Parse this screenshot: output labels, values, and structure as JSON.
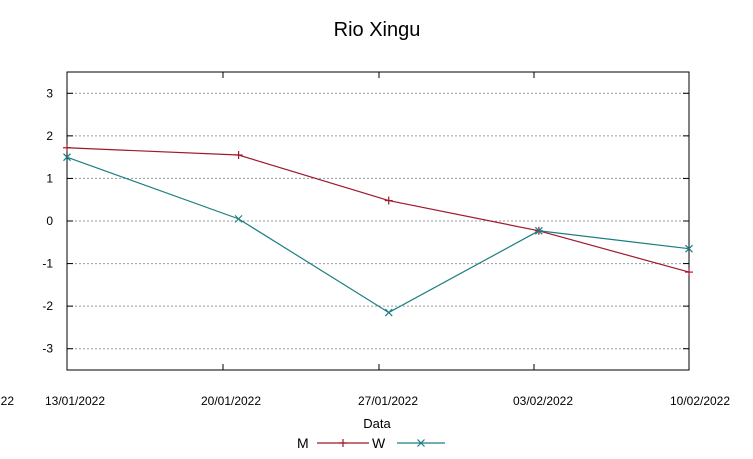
{
  "chart_data": {
    "type": "line",
    "title": "Rio Xingu",
    "xlabel": "Data",
    "ylabel": "",
    "x": [
      "13/01/2022",
      "20/01/2022",
      "27/01/2022",
      "03/02/2022",
      "10/02/2022"
    ],
    "x_tick_labels": [
      "22",
      "13/01/2022",
      "20/01/2022",
      "27/01/2022",
      "03/02/2022",
      "10/02/2022"
    ],
    "x_range": [
      "12/01/2022",
      "10/02/2022"
    ],
    "ylim": [
      -3.5,
      3.5
    ],
    "y_ticks": [
      3,
      2,
      1,
      0,
      -1,
      -2,
      -3
    ],
    "grid": "horizontal dashed",
    "legend_position": "bottom",
    "series": [
      {
        "name": "M",
        "color": "#a0182b",
        "marker": "plus",
        "points": [
          {
            "x": "12/01/2022",
            "y": 1.72
          },
          {
            "x": "20/01/2022",
            "y": 1.55
          },
          {
            "x": "27/01/2022",
            "y": 0.48
          },
          {
            "x": "03/02/2022",
            "y": -0.23
          },
          {
            "x": "10/02/2022",
            "y": -1.2
          }
        ]
      },
      {
        "name": "W",
        "color": "#1c7e80",
        "marker": "x",
        "points": [
          {
            "x": "12/01/2022",
            "y": 1.5
          },
          {
            "x": "20/01/2022",
            "y": 0.05
          },
          {
            "x": "27/01/2022",
            "y": -2.15
          },
          {
            "x": "03/02/2022",
            "y": -0.23
          },
          {
            "x": "10/02/2022",
            "y": -0.65
          }
        ]
      }
    ]
  }
}
